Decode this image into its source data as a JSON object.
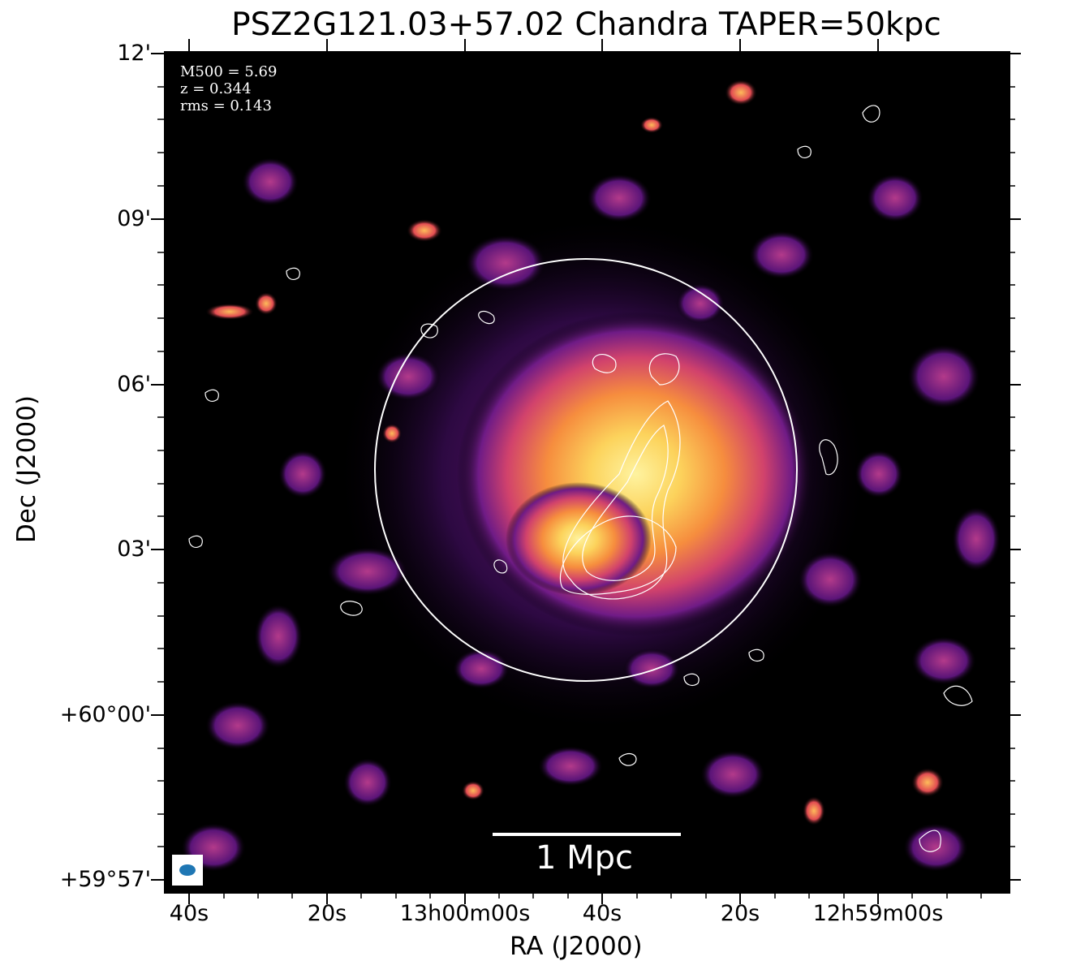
{
  "title": "PSZ2G121.03+57.02 Chandra TAPER=50kpc",
  "info": {
    "m500": "M500 = 5.69",
    "z": "z = 0.344",
    "rms": "rms = 0.143"
  },
  "axes": {
    "xlabel": "RA (J2000)",
    "ylabel": "Dec (J2000)",
    "xticks": [
      "40s",
      "20s",
      "13h00m00s",
      "40s",
      "20s",
      "12h59m00s"
    ],
    "yticks": [
      "12'",
      "09'",
      "06'",
      "03'",
      "+60°00'",
      "+59°57'"
    ]
  },
  "scalebar": {
    "label": "1 Mpc"
  },
  "colors": {
    "background": "#000000",
    "emission_low": "#5b137a",
    "emission_mid": "#e2445c",
    "emission_high": "#fde67a",
    "contour": "#ffffff",
    "beam": "#1f77b4"
  }
}
